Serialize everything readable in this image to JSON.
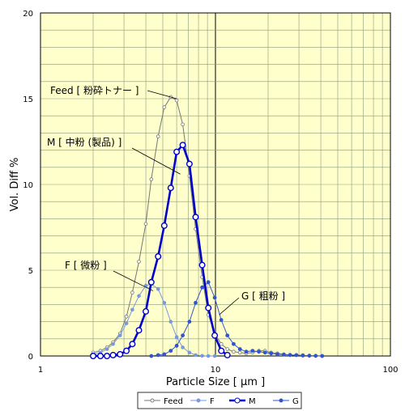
{
  "chart_data": {
    "type": "line",
    "title": "",
    "xlabel": "Particle Size [ μm ]",
    "ylabel": "Vol. Diff %",
    "x_scale": "log",
    "xlim": [
      1,
      100
    ],
    "ylim": [
      0,
      20
    ],
    "x_ticks": [
      "1",
      "10",
      "100"
    ],
    "y_ticks": [
      "0",
      "5",
      "10",
      "15",
      "20"
    ],
    "grid": true,
    "legend_position": "bottom",
    "colors": {
      "plot_background": "#FFFFCC",
      "grid": "#8A9A7A",
      "Feed": "#777777",
      "F": "#7799DD",
      "M": "#0000CC",
      "G": "#3355CC"
    },
    "series": [
      {
        "name": "Feed",
        "x": [
          2.0,
          2.2,
          2.4,
          2.6,
          2.85,
          3.1,
          3.35,
          3.65,
          4.0,
          4.3,
          4.7,
          5.1,
          5.55,
          6.0,
          6.5,
          7.1,
          7.7,
          8.4,
          9.1,
          9.9,
          10.8,
          11.7,
          12.7,
          13.8,
          15.0,
          16.3,
          17.7,
          19.2,
          20.8,
          22.6,
          24.6,
          26.7,
          29.0,
          31.6,
          34.4,
          37.4,
          40.7
        ],
        "y": [
          0.2,
          0.3,
          0.5,
          0.8,
          1.3,
          2.3,
          3.7,
          5.5,
          7.7,
          10.3,
          12.8,
          14.5,
          15.1,
          14.9,
          13.5,
          10.5,
          7.4,
          4.6,
          2.4,
          1.3,
          0.7,
          0.4,
          0.25,
          0.2,
          0.15,
          0.2,
          0.3,
          0.3,
          0.2,
          0.15,
          0.1,
          0.05,
          0.05,
          0.02,
          0.02,
          0.01,
          0.0
        ]
      },
      {
        "name": "F",
        "x": [
          2.0,
          2.2,
          2.4,
          2.6,
          2.85,
          3.1,
          3.35,
          3.65,
          4.0,
          4.3,
          4.7,
          5.1,
          5.55,
          6.0,
          6.5,
          7.1,
          7.7,
          8.4,
          9.1,
          9.9
        ],
        "y": [
          0.1,
          0.2,
          0.4,
          0.7,
          1.2,
          1.9,
          2.7,
          3.5,
          4.1,
          4.2,
          3.9,
          3.1,
          2.0,
          1.1,
          0.5,
          0.2,
          0.05,
          0.01,
          0.0,
          0.0
        ]
      },
      {
        "name": "M",
        "x": [
          2.0,
          2.2,
          2.4,
          2.6,
          2.85,
          3.1,
          3.35,
          3.65,
          4.0,
          4.3,
          4.7,
          5.1,
          5.55,
          6.0,
          6.5,
          7.1,
          7.7,
          8.4,
          9.1,
          9.9,
          10.8,
          11.7
        ],
        "y": [
          0.0,
          0.0,
          0.0,
          0.05,
          0.1,
          0.3,
          0.7,
          1.5,
          2.6,
          4.3,
          5.8,
          7.6,
          9.8,
          11.9,
          12.3,
          11.2,
          8.1,
          5.3,
          2.8,
          1.2,
          0.3,
          0.05
        ]
      },
      {
        "name": "G",
        "x": [
          4.3,
          4.7,
          5.1,
          5.55,
          6.0,
          6.5,
          7.1,
          7.7,
          8.4,
          9.1,
          9.9,
          10.8,
          11.7,
          12.7,
          13.8,
          15.0,
          16.3,
          17.7,
          19.2,
          20.8,
          22.6,
          24.6,
          26.7,
          29.0,
          31.6,
          34.4,
          37.4,
          40.7
        ],
        "y": [
          0.0,
          0.05,
          0.1,
          0.3,
          0.6,
          1.2,
          2.0,
          3.1,
          4.0,
          4.3,
          3.4,
          2.1,
          1.2,
          0.7,
          0.4,
          0.25,
          0.3,
          0.25,
          0.2,
          0.15,
          0.1,
          0.08,
          0.06,
          0.05,
          0.04,
          0.02,
          0.01,
          0.0
        ]
      }
    ],
    "annotations": [
      {
        "text": "Feed [ 粉砕トナー ]",
        "series": "Feed",
        "at": [
          6.0,
          15.0
        ]
      },
      {
        "text": "M [ 中粉 (製品) ]",
        "series": "M",
        "at": [
          6.3,
          10.6
        ]
      },
      {
        "text": "F [ 微粉 ]",
        "series": "F",
        "at": [
          4.4,
          3.8
        ]
      },
      {
        "text": "G [ 粗粉 ]",
        "series": "G",
        "at": [
          10.5,
          2.4
        ]
      }
    ]
  }
}
